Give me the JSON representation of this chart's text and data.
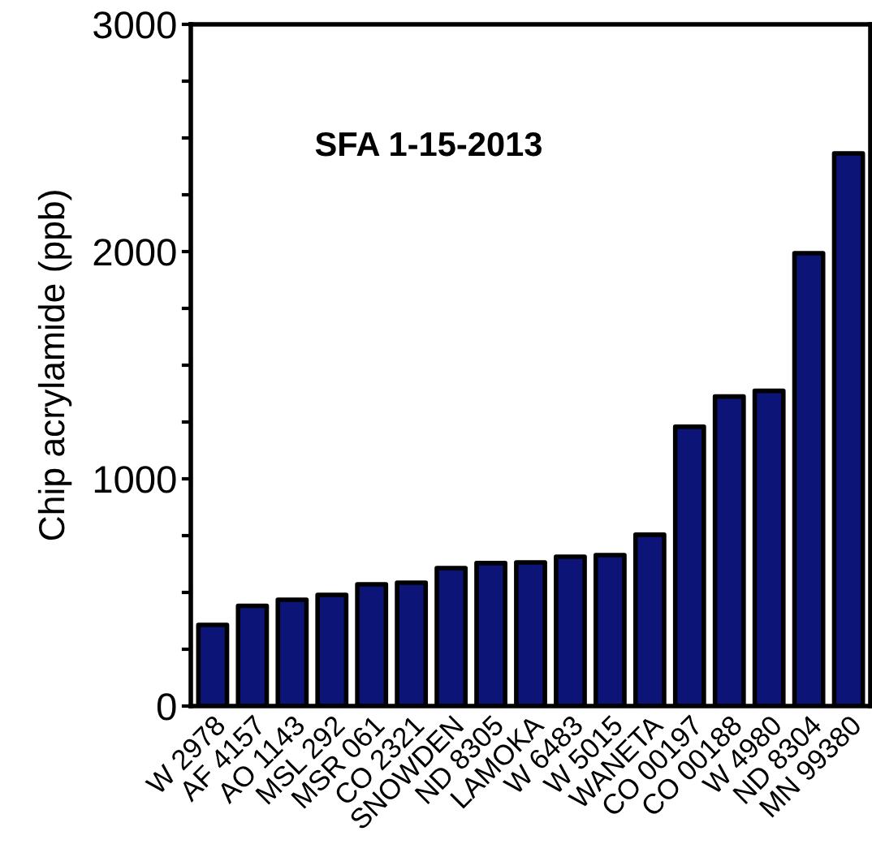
{
  "chart_data": {
    "type": "bar",
    "title": "SFA 1-15-2013",
    "ylabel": "Chip acrylamide (ppb)",
    "categories": [
      "W 2978",
      "AF 4157",
      "AO 1143",
      "MSL 292",
      "MSR 061",
      "CO 2321",
      "SNOWDEN",
      "ND 8305",
      "LAMOKA",
      "W 6483",
      "W 5015",
      "WANETA",
      "CO 00197",
      "CO 00188",
      "W 4980",
      "ND 8304",
      "MN 99380"
    ],
    "values": [
      357,
      441,
      468,
      489,
      536,
      543,
      607,
      629,
      632,
      657,
      664,
      754,
      1229,
      1362,
      1387,
      1993,
      2432
    ],
    "color": "#0c1478",
    "ylim": [
      0,
      3000
    ],
    "yticks": [
      0,
      {
        "value": 250,
        "label": null
      },
      {
        "value": 500,
        "label": null
      },
      {
        "value": 750,
        "label": null
      },
      1000,
      {
        "value": 1250,
        "label": null
      },
      {
        "value": 1500,
        "label": null
      },
      {
        "value": 1750,
        "label": null
      },
      2000,
      {
        "value": 2250,
        "label": null
      },
      {
        "value": 2500,
        "label": null
      },
      {
        "value": 2750,
        "label": null
      },
      3000
    ],
    "grid": false
  }
}
